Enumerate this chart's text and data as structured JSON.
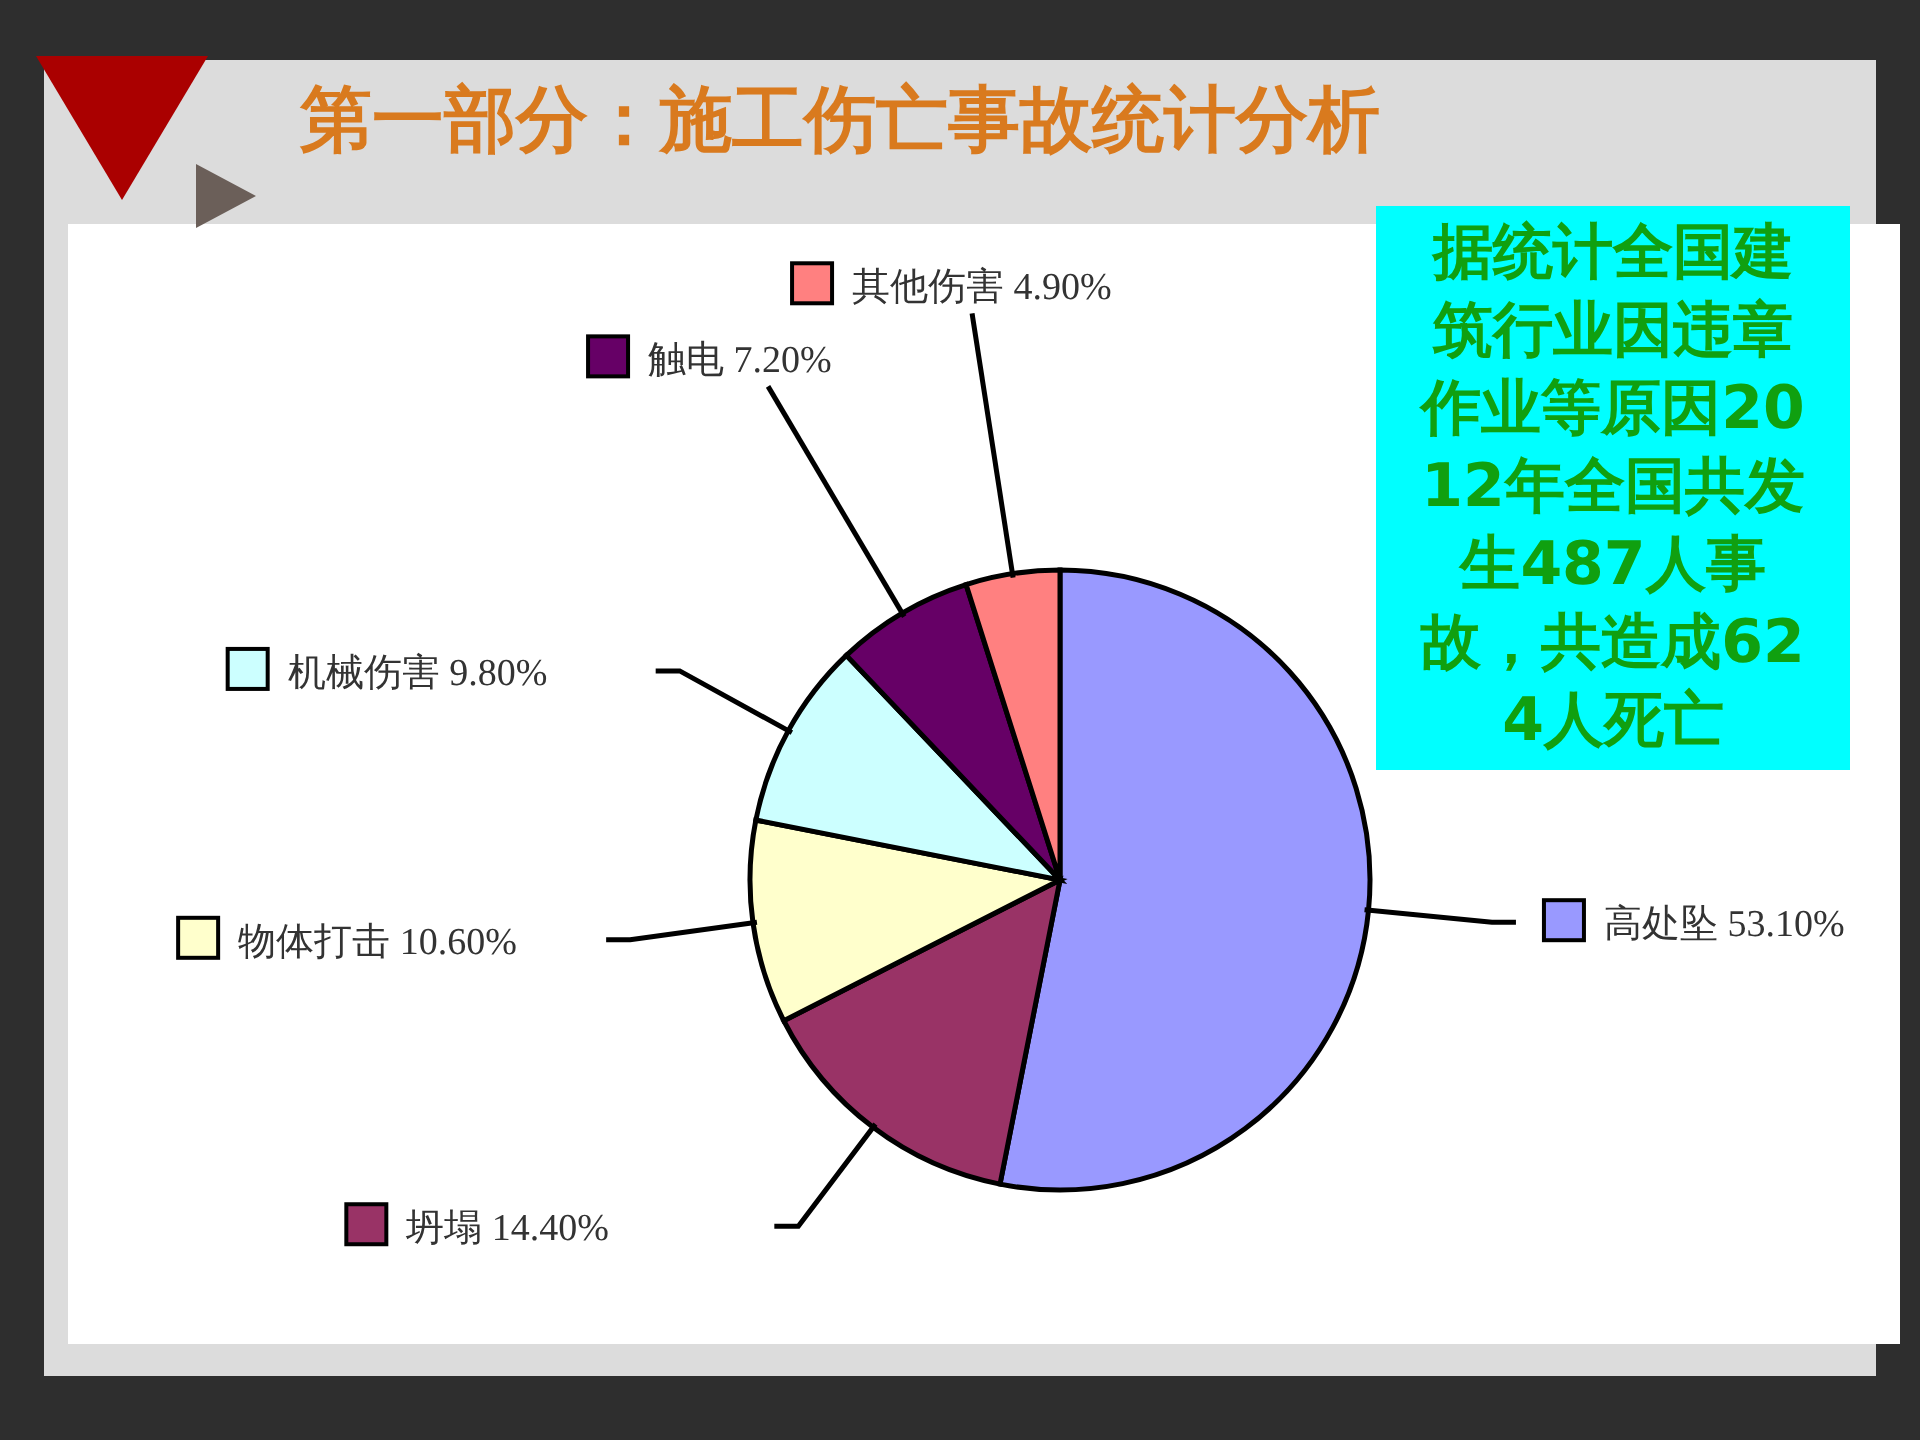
{
  "chart_data": {
    "type": "pie",
    "title": "第一部分：施工伤亡事故统计分析",
    "categories": [
      "高处坠",
      "坍塌",
      "物体打击",
      "机械伤害",
      "触电",
      "其他伤害"
    ],
    "values": [
      53.1,
      14.4,
      10.6,
      9.8,
      7.2,
      4.9
    ],
    "value_labels": [
      "53.10%",
      "14.40%",
      "10.60%",
      "9.80%",
      "7.20%",
      "4.90%"
    ],
    "colors": [
      "#9999ff",
      "#993366",
      "#ffffcc",
      "#ccffff",
      "#660066",
      "#ff8080"
    ],
    "annotations": [
      "据统计全国建筑行业因违章作业等原因2012年全国共发生487人事故，共造成624人死亡"
    ],
    "legend": "left"
  }
}
